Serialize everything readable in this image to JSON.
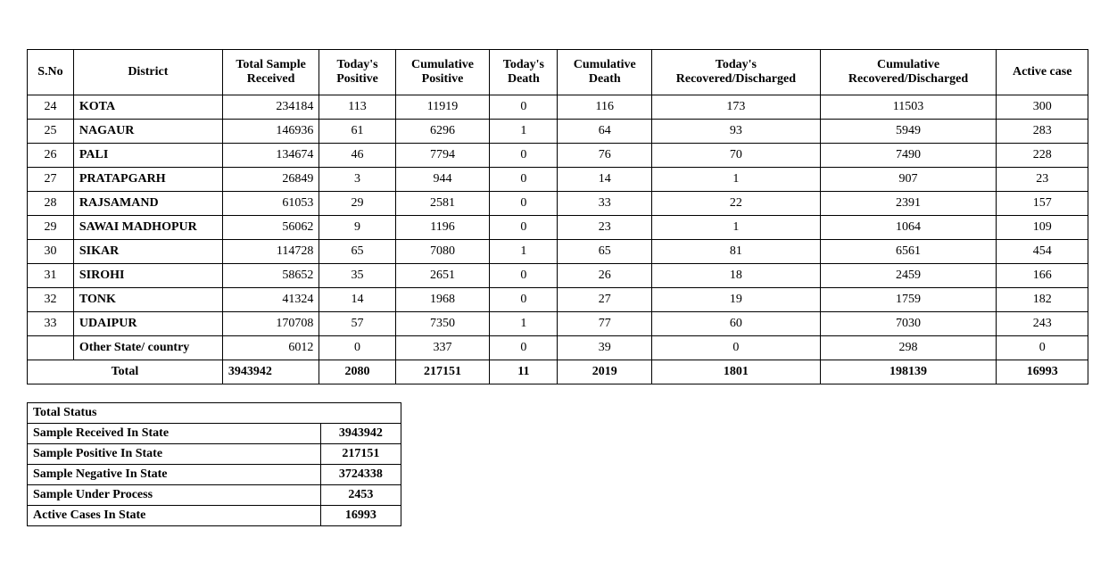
{
  "mainTable": {
    "headers": {
      "sno": "S.No",
      "district": "District",
      "sample": "Total Sample Received",
      "tpos": "Today's Positive",
      "cpos": "Cumulative Positive",
      "tdeath": "Today's Death",
      "cdeath": "Cumulative Death",
      "trd": "Today's Recovered/Discharged",
      "crd": "Cumulative Recovered/Discharged",
      "active": "Active  case"
    },
    "rows": [
      {
        "sno": "24",
        "district": "KOTA",
        "sample": "234184",
        "tpos": "113",
        "cpos": "11919",
        "tdeath": "0",
        "cdeath": "116",
        "trd": "173",
        "crd": "11503",
        "active": "300"
      },
      {
        "sno": "25",
        "district": "NAGAUR",
        "sample": "146936",
        "tpos": "61",
        "cpos": "6296",
        "tdeath": "1",
        "cdeath": "64",
        "trd": "93",
        "crd": "5949",
        "active": "283"
      },
      {
        "sno": "26",
        "district": "PALI",
        "sample": "134674",
        "tpos": "46",
        "cpos": "7794",
        "tdeath": "0",
        "cdeath": "76",
        "trd": "70",
        "crd": "7490",
        "active": "228"
      },
      {
        "sno": "27",
        "district": "PRATAPGARH",
        "sample": "26849",
        "tpos": "3",
        "cpos": "944",
        "tdeath": "0",
        "cdeath": "14",
        "trd": "1",
        "crd": "907",
        "active": "23"
      },
      {
        "sno": "28",
        "district": "RAJSAMAND",
        "sample": "61053",
        "tpos": "29",
        "cpos": "2581",
        "tdeath": "0",
        "cdeath": "33",
        "trd": "22",
        "crd": "2391",
        "active": "157"
      },
      {
        "sno": "29",
        "district": "SAWAI MADHOPUR",
        "sample": "56062",
        "tpos": "9",
        "cpos": "1196",
        "tdeath": "0",
        "cdeath": "23",
        "trd": "1",
        "crd": "1064",
        "active": "109"
      },
      {
        "sno": "30",
        "district": "SIKAR",
        "sample": "114728",
        "tpos": "65",
        "cpos": "7080",
        "tdeath": "1",
        "cdeath": "65",
        "trd": "81",
        "crd": "6561",
        "active": "454"
      },
      {
        "sno": "31",
        "district": "SIROHI",
        "sample": "58652",
        "tpos": "35",
        "cpos": "2651",
        "tdeath": "0",
        "cdeath": "26",
        "trd": "18",
        "crd": "2459",
        "active": "166"
      },
      {
        "sno": "32",
        "district": "TONK",
        "sample": "41324",
        "tpos": "14",
        "cpos": "1968",
        "tdeath": "0",
        "cdeath": "27",
        "trd": "19",
        "crd": "1759",
        "active": "182"
      },
      {
        "sno": "33",
        "district": "UDAIPUR",
        "sample": "170708",
        "tpos": "57",
        "cpos": "7350",
        "tdeath": "1",
        "cdeath": "77",
        "trd": "60",
        "crd": "7030",
        "active": "243"
      }
    ],
    "otherState": {
      "label": "Other State/ country",
      "sample": "6012",
      "tpos": "0",
      "cpos": "337",
      "tdeath": "0",
      "cdeath": "39",
      "trd": "0",
      "crd": "298",
      "active": "0"
    },
    "total": {
      "label": "Total",
      "sample": "3943942",
      "tpos": "2080",
      "cpos": "217151",
      "tdeath": "11",
      "cdeath": "2019",
      "trd": "1801",
      "crd": "198139",
      "active": "16993"
    }
  },
  "statusTable": {
    "title": "Total Status",
    "rows": [
      {
        "label": "Sample Received In State",
        "value": "3943942"
      },
      {
        "label": "Sample Positive In State",
        "value": "217151"
      },
      {
        "label": "Sample Negative In State",
        "value": "3724338"
      },
      {
        "label": "Sample Under Process",
        "value": "2453"
      },
      {
        "label": "Active Cases In State",
        "value": "16993"
      }
    ]
  }
}
